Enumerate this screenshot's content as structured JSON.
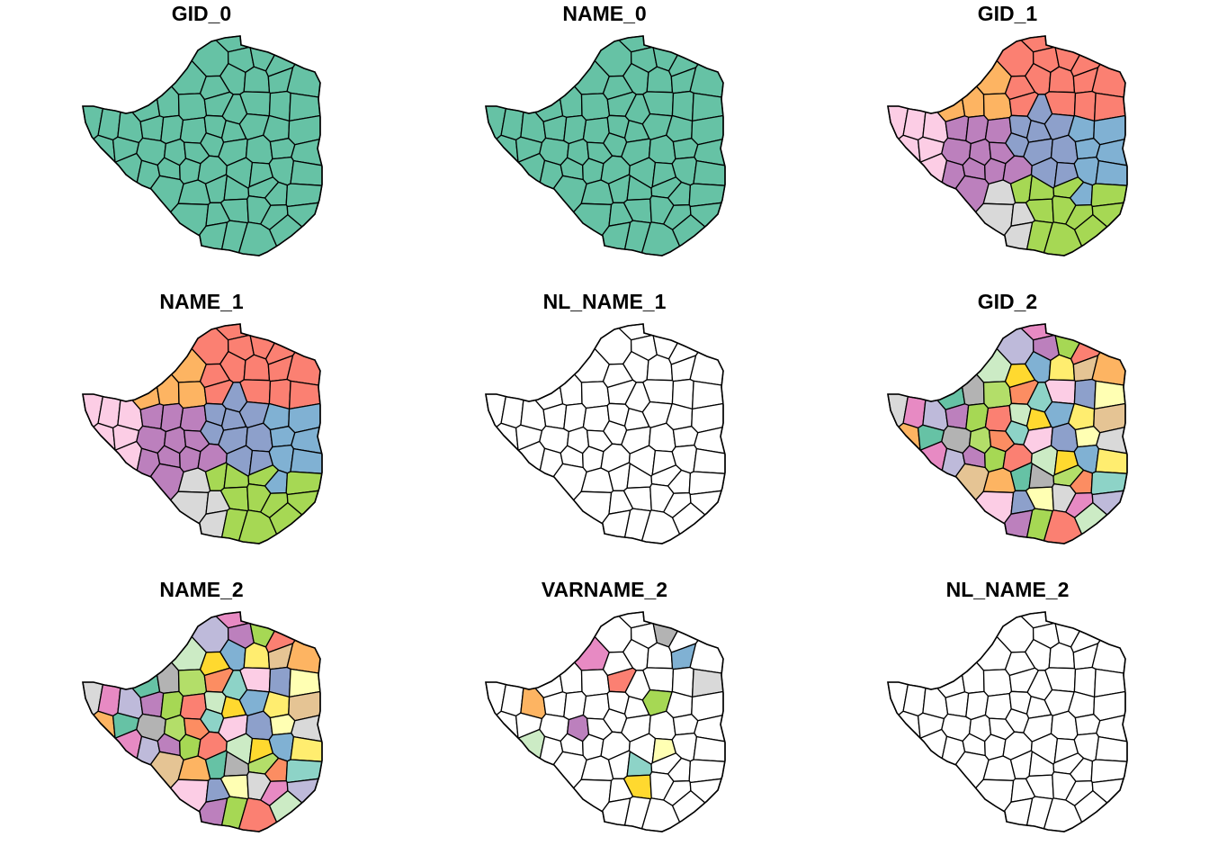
{
  "figure": {
    "panels": [
      {
        "title": "GID_0",
        "fill": "single",
        "color": "#66c2a5"
      },
      {
        "title": "NAME_0",
        "fill": "single",
        "color": "#66c2a5"
      },
      {
        "title": "GID_1",
        "fill": "by-province"
      },
      {
        "title": "NAME_1",
        "fill": "by-province"
      },
      {
        "title": "NL_NAME_1",
        "fill": "none"
      },
      {
        "title": "GID_2",
        "fill": "by-district"
      },
      {
        "title": "NAME_2",
        "fill": "by-district"
      },
      {
        "title": "VARNAME_2",
        "fill": "partial"
      },
      {
        "title": "NL_NAME_2",
        "fill": "none"
      }
    ],
    "palette": [
      "#66c2a5",
      "#fc8d62",
      "#8da0cb",
      "#e78ac3",
      "#a6d854",
      "#ffd92f",
      "#e5c494",
      "#b3b3b3",
      "#8dd3c7",
      "#ffffb3",
      "#bebada",
      "#fb8072",
      "#80b1d3",
      "#fdb462",
      "#b3de69",
      "#fccde5",
      "#d9d9d9",
      "#bc80bd",
      "#ccebc5",
      "#ffed6f"
    ],
    "outline_color": "#000000",
    "empty_fill": "#ffffff"
  }
}
